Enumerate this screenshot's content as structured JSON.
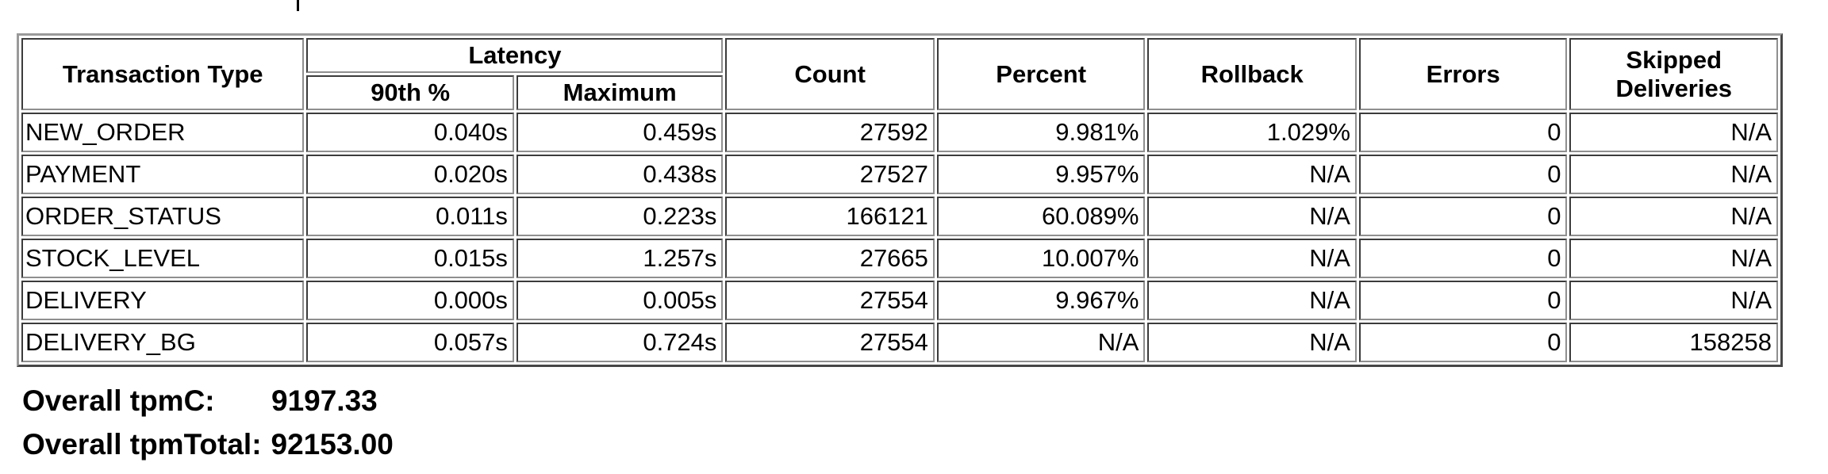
{
  "table": {
    "headers": {
      "transaction_type": "Transaction Type",
      "latency": "Latency",
      "p90": "90th %",
      "maximum": "Maximum",
      "count": "Count",
      "percent": "Percent",
      "rollback": "Rollback",
      "errors": "Errors",
      "skipped_deliveries": "Skipped Deliveries"
    },
    "rows": [
      {
        "type": "NEW_ORDER",
        "p90": "0.040s",
        "max": "0.459s",
        "count": "27592",
        "percent": "9.981%",
        "rollback": "1.029%",
        "errors": "0",
        "skipped": "N/A"
      },
      {
        "type": "PAYMENT",
        "p90": "0.020s",
        "max": "0.438s",
        "count": "27527",
        "percent": "9.957%",
        "rollback": "N/A",
        "errors": "0",
        "skipped": "N/A"
      },
      {
        "type": "ORDER_STATUS",
        "p90": "0.011s",
        "max": "0.223s",
        "count": "166121",
        "percent": "60.089%",
        "rollback": "N/A",
        "errors": "0",
        "skipped": "N/A"
      },
      {
        "type": "STOCK_LEVEL",
        "p90": "0.015s",
        "max": "1.257s",
        "count": "27665",
        "percent": "10.007%",
        "rollback": "N/A",
        "errors": "0",
        "skipped": "N/A"
      },
      {
        "type": "DELIVERY",
        "p90": "0.000s",
        "max": "0.005s",
        "count": "27554",
        "percent": "9.967%",
        "rollback": "N/A",
        "errors": "0",
        "skipped": "N/A"
      },
      {
        "type": "DELIVERY_BG",
        "p90": "0.057s",
        "max": "0.724s",
        "count": "27554",
        "percent": "N/A",
        "rollback": "N/A",
        "errors": "0",
        "skipped": "158258"
      }
    ]
  },
  "summary": {
    "tpmc_label": "Overall tpmC:",
    "tpmc_value": "9197.33",
    "tpmtotal_label": "Overall tpmTotal:",
    "tpmtotal_value": "92153.00"
  }
}
